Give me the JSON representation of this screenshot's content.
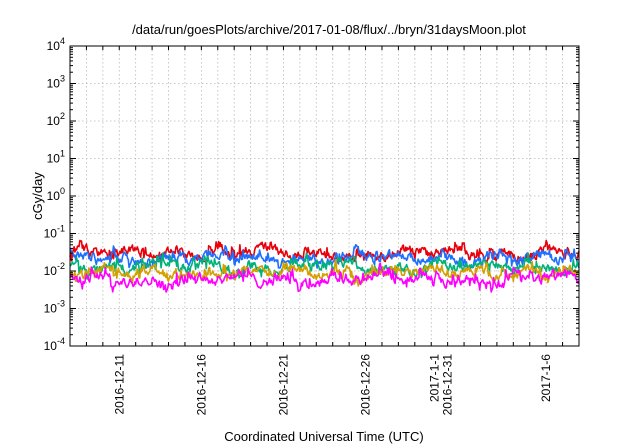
{
  "chart_data": {
    "type": "line",
    "title": "/data/run/goesPlots/archive/2017-01-08/flux/../bryn/31daysMoon.plot",
    "xlabel": "Coordinated Universal Time (UTC)",
    "ylabel": "cGy/day",
    "y_scale": "log",
    "ylim": [
      0.0001,
      10000
    ],
    "xlim": [
      "2016-12-08",
      "2017-01-08"
    ],
    "y_ticks": [
      {
        "base": "10",
        "exp": "-4",
        "value": 0.0001
      },
      {
        "base": "10",
        "exp": "-3",
        "value": 0.001
      },
      {
        "base": "10",
        "exp": "-2",
        "value": 0.01
      },
      {
        "base": "10",
        "exp": "-1",
        "value": 0.1
      },
      {
        "base": "10",
        "exp": "0",
        "value": 1
      },
      {
        "base": "10",
        "exp": "1",
        "value": 10
      },
      {
        "base": "10",
        "exp": "2",
        "value": 100
      },
      {
        "base": "10",
        "exp": "3",
        "value": 1000
      },
      {
        "base": "10",
        "exp": "4",
        "value": 10000
      }
    ],
    "x_ticks": [
      {
        "date": "2016-12-11",
        "labels": [
          "2016-12-11"
        ]
      },
      {
        "date": "2016-12-16",
        "labels": [
          "2016-12-16"
        ]
      },
      {
        "date": "2016-12-21",
        "labels": [
          "2016-12-21"
        ]
      },
      {
        "date": "2016-12-26",
        "labels": [
          "2016-12-26"
        ]
      },
      {
        "date": "2016-12-31",
        "labels": [
          "2016-12-31",
          "2017-1-1"
        ]
      },
      {
        "date": "2017-01-06",
        "labels": [
          "2017-1-6"
        ]
      }
    ],
    "grid": true,
    "series": [
      {
        "color": "#e8000b",
        "level_min": 0.018,
        "level_max": 0.065,
        "typical": 0.03
      },
      {
        "color": "#1f6fff",
        "level_min": 0.012,
        "level_max": 0.05,
        "typical": 0.022
      },
      {
        "color": "#00b27a",
        "level_min": 0.006,
        "level_max": 0.03,
        "typical": 0.013
      },
      {
        "color": "#d4a000",
        "level_min": 0.004,
        "level_max": 0.02,
        "typical": 0.009
      },
      {
        "color": "#ff00ff",
        "level_min": 0.0025,
        "level_max": 0.016,
        "typical": 0.006
      }
    ]
  }
}
